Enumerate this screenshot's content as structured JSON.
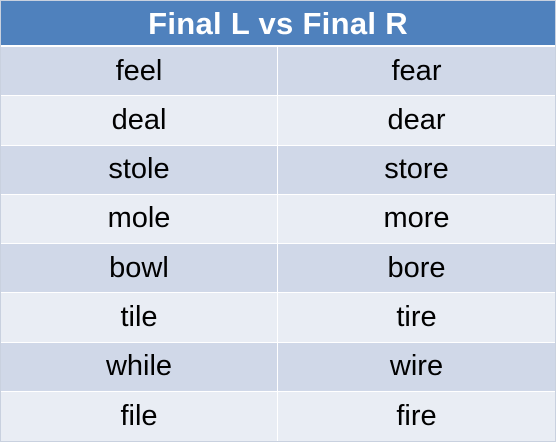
{
  "table": {
    "title": "Final L vs Final R",
    "rows": [
      {
        "l": "feel",
        "r": "fear"
      },
      {
        "l": "deal",
        "r": "dear"
      },
      {
        "l": "stole",
        "r": "store"
      },
      {
        "l": "mole",
        "r": "more"
      },
      {
        "l": "bowl",
        "r": "bore"
      },
      {
        "l": "tile",
        "r": "tire"
      },
      {
        "l": "while",
        "r": "wire"
      },
      {
        "l": "file",
        "r": "fire"
      }
    ]
  },
  "colors": {
    "header": "#4f81bd",
    "row_odd": "#d0d8e8",
    "row_even": "#e9edf4"
  }
}
